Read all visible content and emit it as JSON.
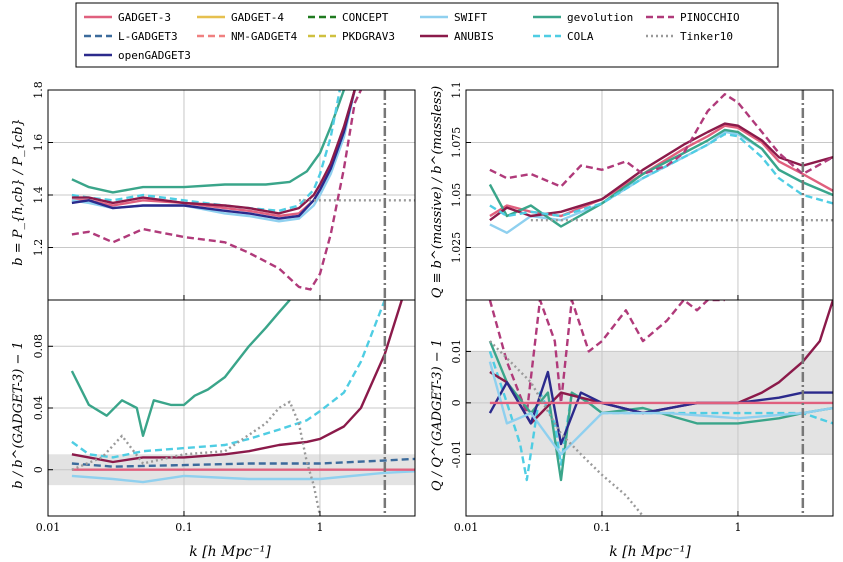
{
  "legend": [
    {
      "label": "GADGET-3",
      "color": "#e0607e",
      "dash": "solid"
    },
    {
      "label": "L-GADGET3",
      "color": "#3c6b9c",
      "dash": "dashed"
    },
    {
      "label": "openGADGET3",
      "color": "#2b2a8c",
      "dash": "solid"
    },
    {
      "label": "GADGET-4",
      "color": "#e6c04f",
      "dash": "solid"
    },
    {
      "label": "NM-GADGET4",
      "color": "#f08080",
      "dash": "dashed"
    },
    {
      "label": "CONCEPT",
      "color": "#1f7a1f",
      "dash": "dashed"
    },
    {
      "label": "PKDGRAV3",
      "color": "#cfc040",
      "dash": "dashed"
    },
    {
      "label": "SWIFT",
      "color": "#8fd0ef",
      "dash": "solid"
    },
    {
      "label": "ANUBIS",
      "color": "#8b1a4a",
      "dash": "solid"
    },
    {
      "label": "gevolution",
      "color": "#3aa58a",
      "dash": "solid"
    },
    {
      "label": "COLA",
      "color": "#4fcde3",
      "dash": "dashed"
    },
    {
      "label": "PINOCCHIO",
      "color": "#b03a7a",
      "dash": "dashed"
    },
    {
      "label": "Tinker10",
      "color": "#9a9a9a",
      "dash": "dotted"
    }
  ],
  "xaxis": {
    "label": "k [h Mpc⁻¹]",
    "ticks": [
      0.01,
      0.1,
      1
    ],
    "tick_labels": [
      "0.01",
      "0.1",
      "1"
    ],
    "xlim": [
      0.01,
      5
    ],
    "vline_k": 3.0
  },
  "panels": {
    "tl": {
      "ylabel": "b = P_{h,cb} / P_{cb}",
      "ylim": [
        1.0,
        1.8
      ],
      "ticks": [
        1.2,
        1.4,
        1.6,
        1.8
      ],
      "tick_labels": [
        "1.2",
        "1.4",
        "1.6",
        "1.8"
      ],
      "band": null
    },
    "tr": {
      "ylabel": "Q ≡ b^(massive) / b^(massless)",
      "ylim": [
        1.0,
        1.1
      ],
      "ticks": [
        1.025,
        1.05,
        1.075,
        1.1
      ],
      "tick_labels": [
        "1.025",
        "1.05",
        "1.075",
        "1.1"
      ],
      "band": null
    },
    "bl": {
      "ylabel": "b / b^(GADGET-3) − 1",
      "ylim": [
        -0.03,
        0.11
      ],
      "ticks": [
        0.0,
        0.04,
        0.08
      ],
      "tick_labels": [
        "0",
        "0.04",
        "0.08"
      ],
      "band": [
        -0.01,
        0.01
      ]
    },
    "br": {
      "ylabel": "Q / Q^(GADGET-3) − 1",
      "ylim": [
        -0.022,
        0.02
      ],
      "ticks": [
        -0.01,
        0.0,
        0.01
      ],
      "tick_labels": [
        "-0.01",
        "0",
        "0.01"
      ],
      "band": [
        -0.01,
        0.01
      ]
    }
  },
  "chart_data": [
    {
      "panel": "tl",
      "type": "line",
      "xscale": "log",
      "ylabel": "b = P_{h,cb} / P_{cb}",
      "xlabel": "k [h Mpc⁻¹]",
      "series": [
        {
          "name": "gevolution",
          "x": [
            0.015,
            0.02,
            0.03,
            0.05,
            0.1,
            0.2,
            0.4,
            0.6,
            0.8,
            1.0,
            1.2,
            1.5
          ],
          "values": [
            1.46,
            1.43,
            1.41,
            1.43,
            1.43,
            1.44,
            1.44,
            1.45,
            1.49,
            1.56,
            1.66,
            1.8
          ]
        },
        {
          "name": "GADGET-3",
          "x": [
            0.015,
            0.02,
            0.03,
            0.05,
            0.1,
            0.2,
            0.3,
            0.5,
            0.7,
            0.9,
            1.0,
            1.2,
            1.5,
            1.8
          ],
          "values": [
            1.38,
            1.38,
            1.36,
            1.38,
            1.37,
            1.35,
            1.34,
            1.32,
            1.33,
            1.38,
            1.42,
            1.5,
            1.64,
            1.8
          ]
        },
        {
          "name": "SWIFT",
          "x": [
            0.015,
            0.02,
            0.03,
            0.05,
            0.1,
            0.2,
            0.3,
            0.5,
            0.7,
            0.9,
            1.0,
            1.2,
            1.5,
            1.8
          ],
          "values": [
            1.38,
            1.37,
            1.35,
            1.36,
            1.36,
            1.33,
            1.32,
            1.3,
            1.31,
            1.36,
            1.4,
            1.48,
            1.62,
            1.8
          ]
        },
        {
          "name": "openGADGET3",
          "x": [
            0.015,
            0.02,
            0.03,
            0.05,
            0.1,
            0.2,
            0.3,
            0.5,
            0.7,
            0.9,
            1.0,
            1.2,
            1.5,
            1.8
          ],
          "values": [
            1.37,
            1.38,
            1.35,
            1.36,
            1.36,
            1.34,
            1.33,
            1.31,
            1.32,
            1.38,
            1.42,
            1.5,
            1.64,
            1.8
          ]
        },
        {
          "name": "COLA",
          "x": [
            0.015,
            0.02,
            0.03,
            0.05,
            0.1,
            0.2,
            0.3,
            0.5,
            0.7,
            0.9,
            1.0,
            1.2,
            1.4
          ],
          "values": [
            1.4,
            1.39,
            1.38,
            1.4,
            1.38,
            1.36,
            1.35,
            1.34,
            1.36,
            1.42,
            1.48,
            1.62,
            1.8
          ]
        },
        {
          "name": "ANUBIS",
          "x": [
            0.015,
            0.02,
            0.03,
            0.05,
            0.1,
            0.2,
            0.3,
            0.5,
            0.7,
            0.9,
            1.0,
            1.2,
            1.5,
            1.8
          ],
          "values": [
            1.39,
            1.39,
            1.37,
            1.39,
            1.37,
            1.36,
            1.35,
            1.33,
            1.35,
            1.4,
            1.44,
            1.52,
            1.66,
            1.8
          ]
        },
        {
          "name": "PINOCCHIO",
          "x": [
            0.015,
            0.02,
            0.03,
            0.05,
            0.1,
            0.2,
            0.3,
            0.5,
            0.7,
            0.85,
            1.0,
            1.2,
            1.5,
            1.8,
            2.0
          ],
          "values": [
            1.25,
            1.26,
            1.22,
            1.27,
            1.24,
            1.22,
            1.18,
            1.12,
            1.05,
            1.04,
            1.1,
            1.25,
            1.5,
            1.75,
            1.8
          ]
        },
        {
          "name": "Tinker10",
          "x": [
            0.7,
            1.0,
            2.0,
            5.0
          ],
          "values": [
            1.38,
            1.38,
            1.38,
            1.38
          ]
        }
      ]
    },
    {
      "panel": "tr",
      "type": "line",
      "xscale": "log",
      "ylabel": "Q ≡ b^(massive) / b^(massless)",
      "xlabel": "k [h Mpc⁻¹]",
      "series": [
        {
          "name": "GADGET-3",
          "x": [
            0.015,
            0.02,
            0.03,
            0.05,
            0.1,
            0.2,
            0.4,
            0.6,
            0.8,
            1.0,
            1.5,
            2.0,
            3.0,
            5.0
          ],
          "values": [
            1.04,
            1.045,
            1.042,
            1.04,
            1.048,
            1.06,
            1.072,
            1.078,
            1.083,
            1.082,
            1.075,
            1.066,
            1.06,
            1.052
          ]
        },
        {
          "name": "SWIFT",
          "x": [
            0.015,
            0.02,
            0.03,
            0.05,
            0.1,
            0.2,
            0.4,
            0.6,
            0.8,
            1.0,
            1.5,
            2.0,
            3.0,
            5.0
          ],
          "values": [
            1.036,
            1.032,
            1.04,
            1.038,
            1.046,
            1.058,
            1.068,
            1.074,
            1.08,
            1.079,
            1.072,
            1.062,
            1.056,
            1.05
          ]
        },
        {
          "name": "gevolution",
          "x": [
            0.015,
            0.02,
            0.03,
            0.05,
            0.1,
            0.2,
            0.4,
            0.6,
            0.8,
            1.0,
            1.5,
            2.0,
            3.0,
            5.0
          ],
          "values": [
            1.055,
            1.04,
            1.045,
            1.035,
            1.046,
            1.06,
            1.07,
            1.076,
            1.081,
            1.08,
            1.072,
            1.062,
            1.056,
            1.05
          ]
        },
        {
          "name": "ANUBIS",
          "x": [
            0.015,
            0.02,
            0.03,
            0.05,
            0.1,
            0.2,
            0.4,
            0.6,
            0.8,
            1.0,
            1.5,
            2.0,
            3.0,
            5.0
          ],
          "values": [
            1.038,
            1.044,
            1.04,
            1.042,
            1.048,
            1.062,
            1.074,
            1.08,
            1.084,
            1.083,
            1.076,
            1.068,
            1.064,
            1.068
          ]
        },
        {
          "name": "COLA",
          "x": [
            0.015,
            0.02,
            0.03,
            0.05,
            0.1,
            0.2,
            0.4,
            0.6,
            0.8,
            1.0,
            1.5,
            2.0,
            3.0,
            5.0
          ],
          "values": [
            1.045,
            1.04,
            1.042,
            1.04,
            1.046,
            1.058,
            1.068,
            1.074,
            1.079,
            1.078,
            1.068,
            1.058,
            1.05,
            1.046
          ]
        },
        {
          "name": "PINOCCHIO",
          "x": [
            0.015,
            0.02,
            0.03,
            0.05,
            0.07,
            0.1,
            0.15,
            0.2,
            0.3,
            0.4,
            0.6,
            0.8,
            1.0,
            1.5,
            2.0,
            3.0,
            5.0
          ],
          "values": [
            1.062,
            1.058,
            1.06,
            1.054,
            1.064,
            1.062,
            1.066,
            1.06,
            1.064,
            1.07,
            1.09,
            1.098,
            1.094,
            1.08,
            1.07,
            1.06,
            1.068
          ]
        },
        {
          "name": "Tinker10",
          "x": [
            0.03,
            0.1,
            1.0,
            5.0
          ],
          "values": [
            1.038,
            1.038,
            1.038,
            1.038
          ]
        }
      ]
    },
    {
      "panel": "bl",
      "type": "line",
      "xscale": "log",
      "ylabel": "b / b^(GADGET-3) − 1",
      "xlabel": "k [h Mpc⁻¹]",
      "series": [
        {
          "name": "gevolution",
          "x": [
            0.015,
            0.02,
            0.027,
            0.035,
            0.045,
            0.05,
            0.06,
            0.08,
            0.1,
            0.12,
            0.15,
            0.2,
            0.3,
            0.4,
            0.5,
            0.6
          ],
          "values": [
            0.064,
            0.042,
            0.035,
            0.045,
            0.04,
            0.022,
            0.045,
            0.042,
            0.042,
            0.048,
            0.052,
            0.06,
            0.08,
            0.092,
            0.102,
            0.11
          ]
        },
        {
          "name": "COLA",
          "x": [
            0.015,
            0.02,
            0.03,
            0.05,
            0.1,
            0.2,
            0.3,
            0.5,
            0.8,
            1.0,
            1.5,
            2.0,
            3.0
          ],
          "values": [
            0.018,
            0.01,
            0.008,
            0.012,
            0.014,
            0.016,
            0.02,
            0.026,
            0.032,
            0.038,
            0.05,
            0.07,
            0.11
          ]
        },
        {
          "name": "ANUBIS",
          "x": [
            0.015,
            0.02,
            0.03,
            0.05,
            0.1,
            0.2,
            0.3,
            0.5,
            0.8,
            1.0,
            1.5,
            2.0,
            3.0,
            4.0
          ],
          "values": [
            0.01,
            0.008,
            0.005,
            0.008,
            0.008,
            0.01,
            0.012,
            0.016,
            0.018,
            0.02,
            0.028,
            0.04,
            0.075,
            0.11
          ]
        },
        {
          "name": "L-GADGET3",
          "x": [
            0.015,
            0.03,
            0.1,
            0.3,
            1.0,
            3.0,
            5.0
          ],
          "values": [
            0.004,
            0.002,
            0.003,
            0.004,
            0.004,
            0.006,
            0.007
          ]
        },
        {
          "name": "SWIFT",
          "x": [
            0.015,
            0.03,
            0.05,
            0.1,
            0.3,
            1.0,
            3.0,
            5.0
          ],
          "values": [
            -0.004,
            -0.006,
            -0.008,
            -0.004,
            -0.006,
            -0.006,
            -0.002,
            -0.001
          ]
        },
        {
          "name": "GADGET-3",
          "x": [
            0.015,
            0.1,
            1.0,
            5.0
          ],
          "values": [
            0.0,
            0.0,
            0.0,
            0.0
          ]
        },
        {
          "name": "Tinker10",
          "x": [
            0.015,
            0.025,
            0.035,
            0.05,
            0.1,
            0.2,
            0.4,
            0.5,
            0.6,
            0.7,
            0.8,
            0.9,
            1.0
          ],
          "values": [
            0.0,
            0.008,
            0.022,
            0.004,
            0.01,
            0.012,
            0.03,
            0.04,
            0.044,
            0.03,
            0.005,
            -0.01,
            -0.03
          ]
        }
      ]
    },
    {
      "panel": "br",
      "type": "line",
      "xscale": "log",
      "ylabel": "Q / Q^(GADGET-3) − 1",
      "xlabel": "k [h Mpc⁻¹]",
      "series": [
        {
          "name": "PINOCCHIO",
          "x": [
            0.015,
            0.02,
            0.028,
            0.035,
            0.045,
            0.05,
            0.06,
            0.08,
            0.1,
            0.15,
            0.2,
            0.3,
            0.4,
            0.5,
            0.6,
            0.7,
            0.8
          ],
          "values": [
            0.02,
            0.008,
            -0.002,
            0.02,
            0.012,
            0.0,
            0.02,
            0.01,
            0.012,
            0.018,
            0.012,
            0.016,
            0.02,
            0.018,
            0.02,
            0.02,
            0.02
          ]
        },
        {
          "name": "COLA",
          "x": [
            0.015,
            0.02,
            0.025,
            0.028,
            0.035,
            0.045,
            0.05,
            0.06,
            0.08,
            0.1,
            0.2,
            0.5,
            1.0,
            2.0,
            3.0,
            5.0
          ],
          "values": [
            0.01,
            0.0,
            -0.008,
            -0.015,
            0.002,
            -0.004,
            -0.012,
            0.002,
            0.0,
            -0.002,
            -0.002,
            -0.002,
            -0.002,
            -0.002,
            -0.002,
            -0.004
          ]
        },
        {
          "name": "gevolution",
          "x": [
            0.015,
            0.02,
            0.03,
            0.04,
            0.05,
            0.06,
            0.08,
            0.1,
            0.2,
            0.5,
            1.0,
            2.0,
            3.0,
            5.0
          ],
          "values": [
            0.012,
            0.004,
            -0.002,
            0.002,
            -0.015,
            0.002,
            0.0,
            -0.002,
            -0.001,
            -0.004,
            -0.004,
            -0.003,
            -0.002,
            -0.001
          ]
        },
        {
          "name": "ANUBIS",
          "x": [
            0.015,
            0.02,
            0.03,
            0.05,
            0.1,
            0.2,
            0.5,
            1.0,
            1.5,
            2.0,
            3.0,
            4.0,
            5.0
          ],
          "values": [
            0.006,
            0.004,
            -0.004,
            0.002,
            0.0,
            -0.002,
            0.0,
            0.0,
            0.002,
            0.004,
            0.008,
            0.012,
            0.02
          ]
        },
        {
          "name": "openGADGET3",
          "x": [
            0.015,
            0.02,
            0.03,
            0.04,
            0.05,
            0.07,
            0.1,
            0.2,
            0.5,
            1.0,
            2.0,
            3.0,
            5.0
          ],
          "values": [
            -0.002,
            0.004,
            -0.004,
            0.006,
            -0.008,
            0.002,
            0.0,
            -0.002,
            0.0,
            0.0,
            0.001,
            0.002,
            0.002
          ]
        },
        {
          "name": "SWIFT",
          "x": [
            0.015,
            0.02,
            0.03,
            0.05,
            0.1,
            0.3,
            1.0,
            3.0,
            5.0
          ],
          "values": [
            0.008,
            -0.004,
            -0.002,
            -0.01,
            -0.002,
            -0.002,
            -0.003,
            -0.002,
            -0.001
          ]
        },
        {
          "name": "GADGET-3",
          "x": [
            0.015,
            0.1,
            1.0,
            5.0
          ],
          "values": [
            0.0,
            0.0,
            0.0,
            0.0
          ]
        },
        {
          "name": "Tinker10",
          "x": [
            0.015,
            0.03,
            0.05,
            0.07,
            0.1,
            0.15,
            0.2
          ],
          "values": [
            0.012,
            0.004,
            -0.006,
            -0.01,
            -0.014,
            -0.018,
            -0.022
          ]
        }
      ]
    }
  ]
}
